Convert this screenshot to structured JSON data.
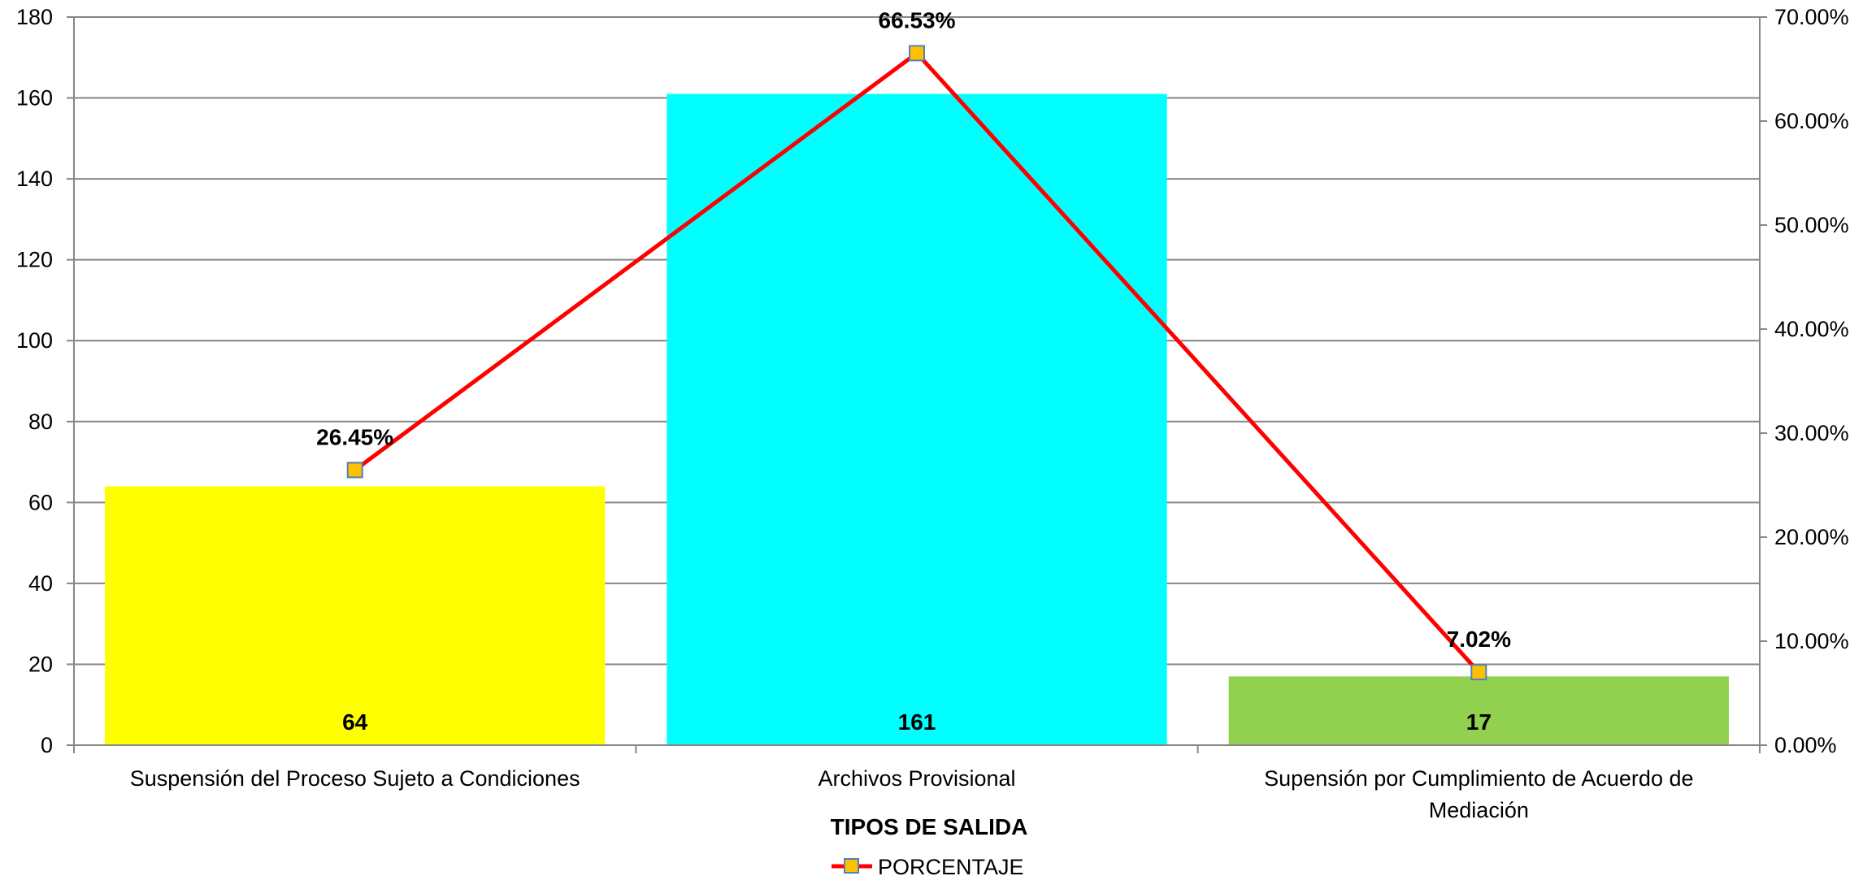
{
  "chart_data": {
    "type": "bar",
    "categories": [
      "Suspensión del Proceso Sujeto a Condiciones",
      "Archivos Provisional",
      "Supensión por Cumplimiento de Acuerdo de Mediación"
    ],
    "category_lines": [
      [
        "Suspensión del Proceso Sujeto a Condiciones"
      ],
      [
        "Archivos Provisional"
      ],
      [
        "Supensión por Cumplimiento de Acuerdo de",
        "Mediación"
      ]
    ],
    "series": [
      {
        "type": "bar",
        "values": [
          64,
          161,
          17
        ],
        "value_labels": [
          "64",
          "161",
          "17"
        ],
        "colors": [
          "#FFFF00",
          "#00FFFF",
          "#92D050"
        ]
      },
      {
        "name": "PORCENTAJE",
        "type": "line",
        "axis": "right",
        "values": [
          26.45,
          66.53,
          7.02
        ],
        "value_labels": [
          "26.45%",
          "66.53%",
          "7.02%"
        ],
        "color": "#FF0000",
        "marker_fill": "#FFC000",
        "marker_stroke": "#4F81BD"
      }
    ],
    "xlabel": "TIPOS DE SALIDA",
    "ylim": [
      0,
      180
    ],
    "yticks": [
      0,
      20,
      40,
      60,
      80,
      100,
      120,
      140,
      160,
      180
    ],
    "y2lim": [
      0,
      70
    ],
    "y2ticks": [
      "0.00%",
      "10.00%",
      "20.00%",
      "30.00%",
      "40.00%",
      "50.00%",
      "60.00%",
      "70.00%"
    ],
    "grid": true,
    "legend_position": "bottom"
  },
  "legend": {
    "label": "PORCENTAJE"
  }
}
